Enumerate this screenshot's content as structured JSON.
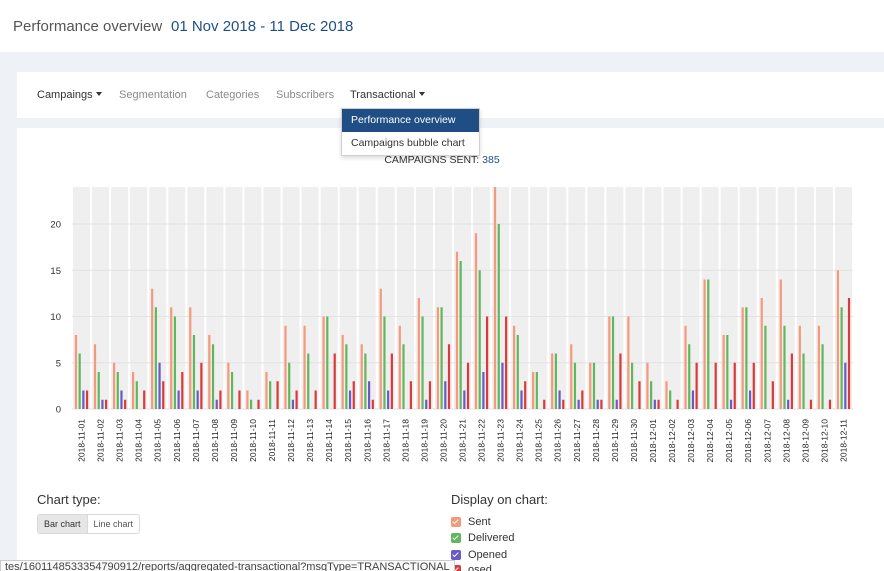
{
  "header": {
    "title": "Performance overview",
    "date_range": "01 Nov 2018 - 11 Dec 2018"
  },
  "nav": {
    "campaigns": "Campaings",
    "segmentation": "Segmentation",
    "categories": "Categories",
    "subscribers": "Subscribers",
    "transactional": "Transactional",
    "dropdown": {
      "performance": "Performance overview",
      "bubble": "Campaigns bubble chart"
    }
  },
  "campaigns_sent": {
    "label": "CAMPAIGNS SENT:",
    "value": "385"
  },
  "controls": {
    "chart_type_label": "Chart type:",
    "bar_chart": "Bar chart",
    "line_chart": "Line chart",
    "display_label": "Display on chart:",
    "legend": [
      {
        "label": "Sent",
        "color": "#f4997a"
      },
      {
        "label": "Delivered",
        "color": "#5fb85c"
      },
      {
        "label": "Opened",
        "color": "#6a5ac6"
      },
      {
        "label": "osed",
        "color": "#d93a3a"
      }
    ]
  },
  "status_url": "tes/1601148533354790912/reports/aggregated-transactional?msgType=TRANSACTIONAL",
  "colors": {
    "accent": "#1f4e85",
    "sent": "#f4997a",
    "delivered": "#5fb85c",
    "opened": "#6a5ac6",
    "closed": "#d93a3a",
    "column_band": "#efefef"
  },
  "chart_data": {
    "type": "bar",
    "title": "",
    "xlabel": "",
    "ylabel": "",
    "ylim": [
      0,
      24
    ],
    "yticks": [
      0,
      5,
      10,
      15,
      20
    ],
    "grid": true,
    "categories": [
      "2018-11-01",
      "2018-11-02",
      "2018-11-03",
      "2018-11-04",
      "2018-11-05",
      "2018-11-06",
      "2018-11-07",
      "2018-11-08",
      "2018-11-09",
      "2018-11-10",
      "2018-11-11",
      "2018-11-12",
      "2018-11-13",
      "2018-11-14",
      "2018-11-15",
      "2018-11-16",
      "2018-11-17",
      "2018-11-18",
      "2018-11-19",
      "2018-11-20",
      "2018-11-21",
      "2018-11-22",
      "2018-11-23",
      "2018-11-24",
      "2018-11-25",
      "2018-11-26",
      "2018-11-27",
      "2018-11-28",
      "2018-11-29",
      "2018-11-30",
      "2018-12-01",
      "2018-12-02",
      "2018-12-03",
      "2018-12-04",
      "2018-12-05",
      "2018-12-06",
      "2018-12-07",
      "2018-12-08",
      "2018-12-09",
      "2018-12-10",
      "2018-12-11"
    ],
    "series": [
      {
        "name": "Sent",
        "color": "#f4997a",
        "values": [
          8,
          7,
          5,
          4,
          13,
          11,
          11,
          8,
          5,
          2,
          4,
          9,
          9,
          10,
          8,
          7,
          13,
          9,
          12,
          11,
          17,
          19,
          24,
          9,
          4,
          6,
          7,
          5,
          10,
          10,
          5,
          3,
          9,
          14,
          8,
          11,
          12,
          14,
          9,
          9,
          15
        ]
      },
      {
        "name": "Delivered",
        "color": "#5fb85c",
        "values": [
          6,
          4,
          4,
          3,
          11,
          10,
          8,
          7,
          4,
          1,
          3,
          5,
          6,
          10,
          7,
          6,
          10,
          7,
          10,
          11,
          16,
          15,
          20,
          8,
          4,
          6,
          5,
          5,
          10,
          5,
          3,
          2,
          7,
          14,
          8,
          11,
          9,
          9,
          6,
          7,
          11
        ]
      },
      {
        "name": "Opened",
        "color": "#6a5ac6",
        "values": [
          2,
          1,
          2,
          0,
          5,
          2,
          2,
          1,
          0,
          0,
          0,
          1,
          0,
          0,
          2,
          3,
          2,
          0,
          1,
          3,
          2,
          4,
          5,
          2,
          0,
          2,
          1,
          1,
          1,
          0,
          1,
          0,
          2,
          0,
          1,
          2,
          0,
          1,
          0,
          0,
          5
        ]
      },
      {
        "name": "osed",
        "color": "#d93a3a",
        "values": [
          2,
          1,
          1,
          2,
          3,
          4,
          5,
          2,
          2,
          1,
          3,
          2,
          2,
          6,
          3,
          1,
          6,
          3,
          3,
          7,
          5,
          10,
          10,
          3,
          1,
          1,
          2,
          1,
          6,
          3,
          1,
          1,
          5,
          5,
          5,
          5,
          3,
          6,
          1,
          1,
          12
        ]
      }
    ]
  }
}
